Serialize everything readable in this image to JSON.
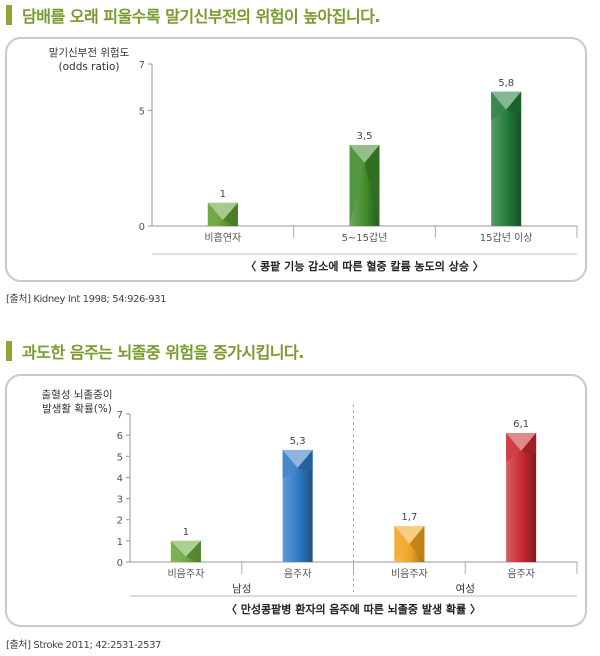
{
  "section1": {
    "heading": "담배를 오래 피울수록 말기신부전의 위험이 높아집니다.",
    "source": "[출처] Kidney Int 1998; 54:926-931"
  },
  "section2": {
    "heading": "과도한 음주는 뇌졸중 위험을 증가시킵니다.",
    "source": "[출처] Stroke 2011; 42:2531-2537"
  },
  "chart_data": [
    {
      "type": "bar",
      "ylabel": [
        "말기신부전 위험도",
        "(odds ratio)"
      ],
      "ylim": [
        0,
        7
      ],
      "yticks": [
        0,
        5,
        7
      ],
      "categories": [
        "비흡연자",
        "5~15갑년",
        "15갑년 이상"
      ],
      "values": [
        1,
        3.5,
        5.8
      ],
      "value_labels": [
        "1",
        "3,5",
        "5,8"
      ],
      "caption": "〈 콩팥 기능 감소에 따른 혈중 칼륨 농도의 상승 〉",
      "colors": [
        "#5f9e2e",
        "#3f8a2a",
        "#237a3a"
      ]
    },
    {
      "type": "bar",
      "ylabel": [
        "출혈성 뇌졸중이",
        "발생활 확률(%)"
      ],
      "ylim": [
        0,
        7
      ],
      "yticks": [
        0,
        1,
        2,
        3,
        4,
        5,
        6,
        7
      ],
      "groups": [
        "남성",
        "여성"
      ],
      "categories": [
        "비음주자",
        "음주자",
        "비음주자",
        "음주자"
      ],
      "values": [
        1,
        5.3,
        1.7,
        6.1
      ],
      "value_labels": [
        "1",
        "5,3",
        "1,7",
        "6,1"
      ],
      "caption": "〈 만성콩팥병 환자의 음주에 따른 뇌졸중 발생 확률 〉",
      "colors": [
        "#6aa83a",
        "#2f78c4",
        "#f0a420",
        "#c8282e"
      ]
    }
  ]
}
